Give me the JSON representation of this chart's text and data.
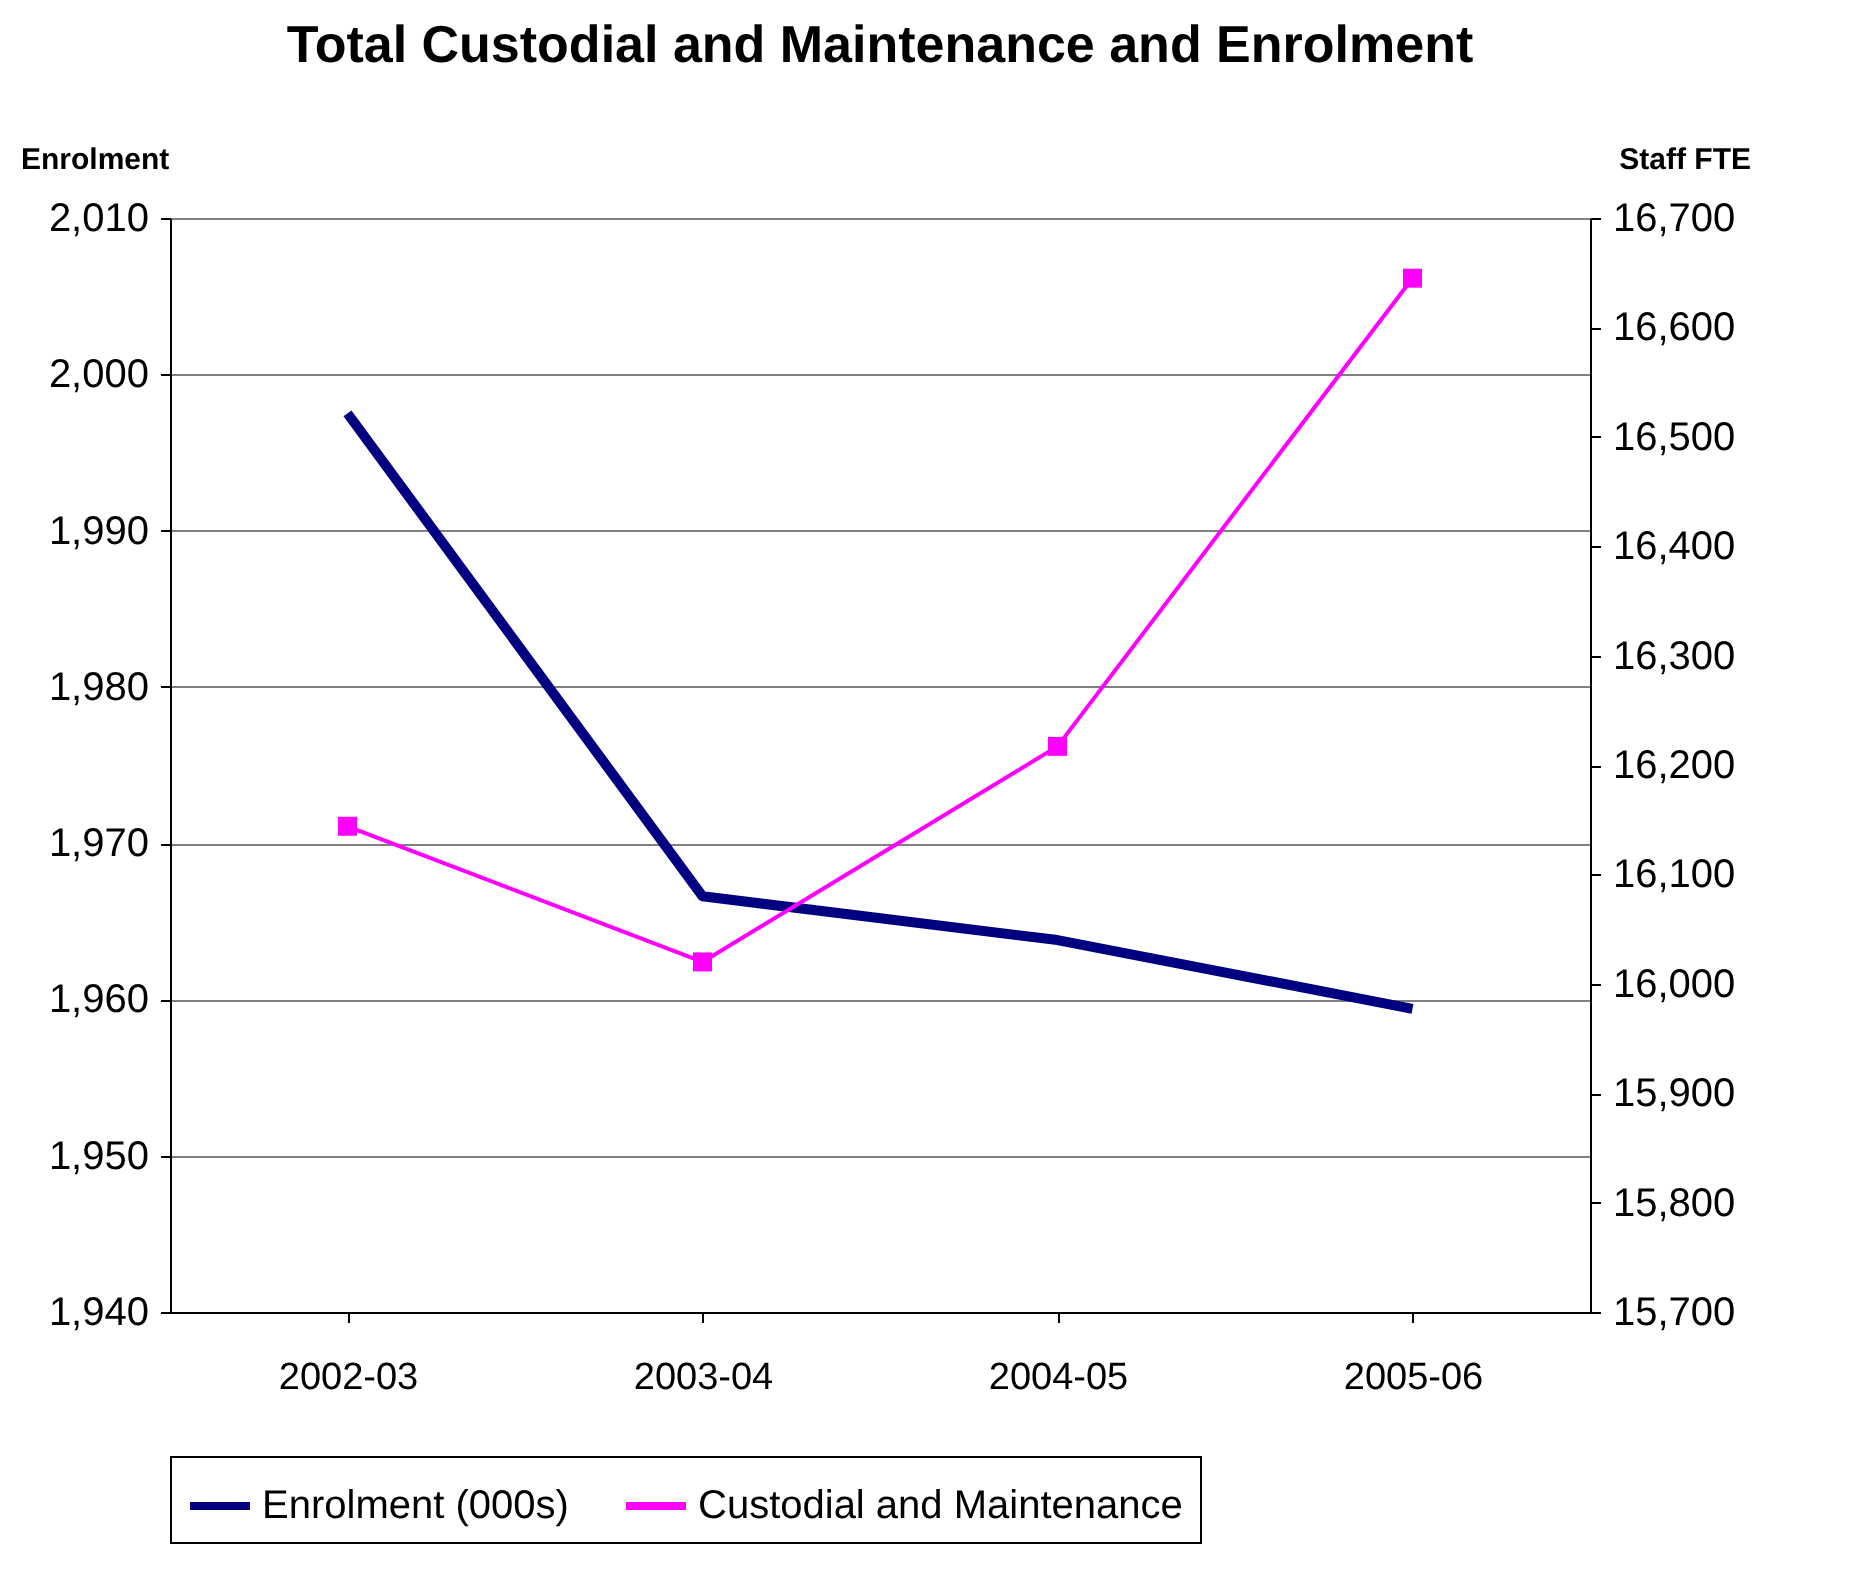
{
  "chart_data": {
    "type": "line",
    "title": "Total Custodial and Maintenance and Enrolment",
    "ylabel": "Enrolment",
    "y2label": "Staff FTE",
    "categories": [
      "2002-03",
      "2003-04",
      "2004-05",
      "2005-06"
    ],
    "series": [
      {
        "name": "Enrolment (000s)",
        "color": "#000080",
        "values": [
          1997.5,
          1966.6,
          1963.8,
          1959.4
        ],
        "marker": "none"
      },
      {
        "name": "Custodial and Maintenance",
        "color": "#ff00ff",
        "values": [
          16144,
          16020,
          16217,
          16645
        ],
        "axis": "y2",
        "marker": "square"
      }
    ],
    "ylim": [
      1940,
      2010
    ],
    "yticks": [
      {
        "value": 1940,
        "label": "1,940"
      },
      {
        "value": 1950,
        "label": "1,950"
      },
      {
        "value": 1960,
        "label": "1,960"
      },
      {
        "value": 1970,
        "label": "1,970"
      },
      {
        "value": 1980,
        "label": "1,980"
      },
      {
        "value": 1990,
        "label": "1,990"
      },
      {
        "value": 2000,
        "label": "2,000"
      },
      {
        "value": 2010,
        "label": "2,010"
      }
    ],
    "y2lim": [
      15700,
      16700
    ],
    "y2ticks": [
      {
        "value": 15700,
        "label": "15,700"
      },
      {
        "value": 15800,
        "label": "15,800"
      },
      {
        "value": 15900,
        "label": "15,900"
      },
      {
        "value": 16000,
        "label": "16,000"
      },
      {
        "value": 16100,
        "label": "16,100"
      },
      {
        "value": 16200,
        "label": "16,200"
      },
      {
        "value": 16300,
        "label": "16,300"
      },
      {
        "value": 16400,
        "label": "16,400"
      },
      {
        "value": 16500,
        "label": "16,500"
      },
      {
        "value": 16600,
        "label": "16,600"
      },
      {
        "value": 16700,
        "label": "16,700"
      }
    ],
    "grid": "y",
    "legend": "bottom"
  }
}
